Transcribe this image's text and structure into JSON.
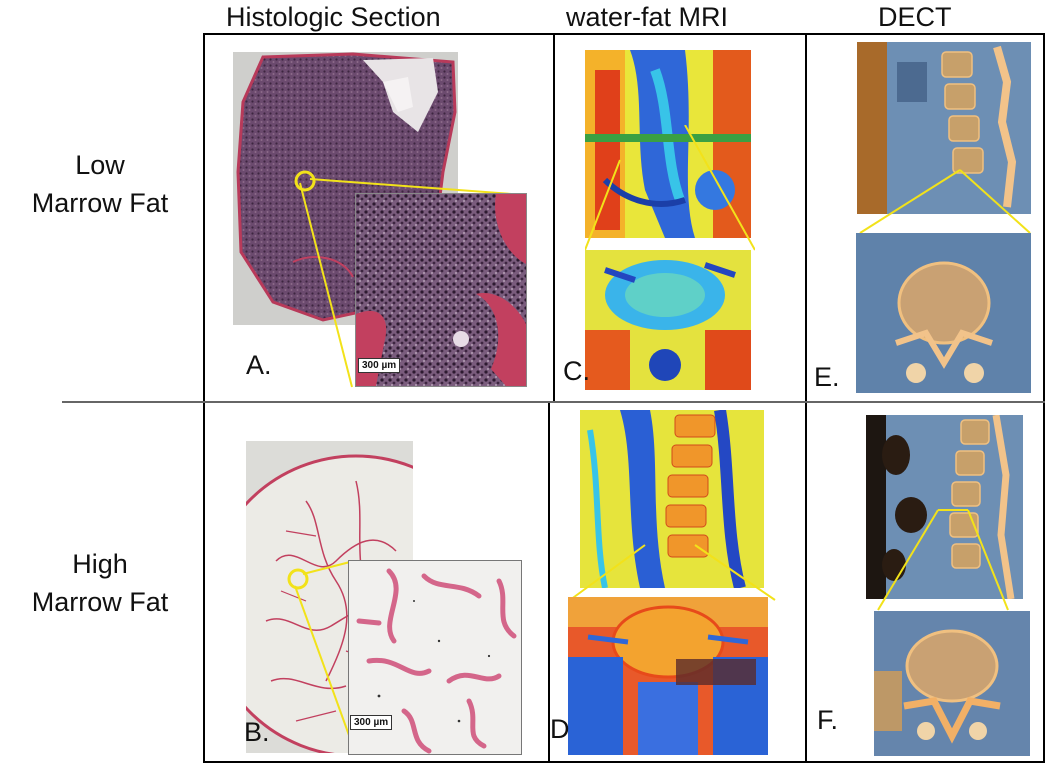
{
  "headers": {
    "histology": "Histologic Section",
    "mri": "water-fat MRI",
    "dect": "DECT"
  },
  "rows": {
    "low": {
      "line1": "Low",
      "line2": "Marrow Fat"
    },
    "high": {
      "line1": "High",
      "line2": "Marrow Fat"
    }
  },
  "panels": {
    "a": "A.",
    "b": "B.",
    "c": "C.",
    "d": "D",
    "e": "E.",
    "f": "F."
  },
  "scale_bars": {
    "a": "300 µm",
    "b": "300 µm"
  },
  "colors": {
    "zoom_lines": "#f2e21a",
    "histo_dense": "#6b4a6e",
    "histo_sparse": "#c2405f",
    "ct_bone": "#e8a85a",
    "ct_tissue": "#6d8fb4"
  }
}
